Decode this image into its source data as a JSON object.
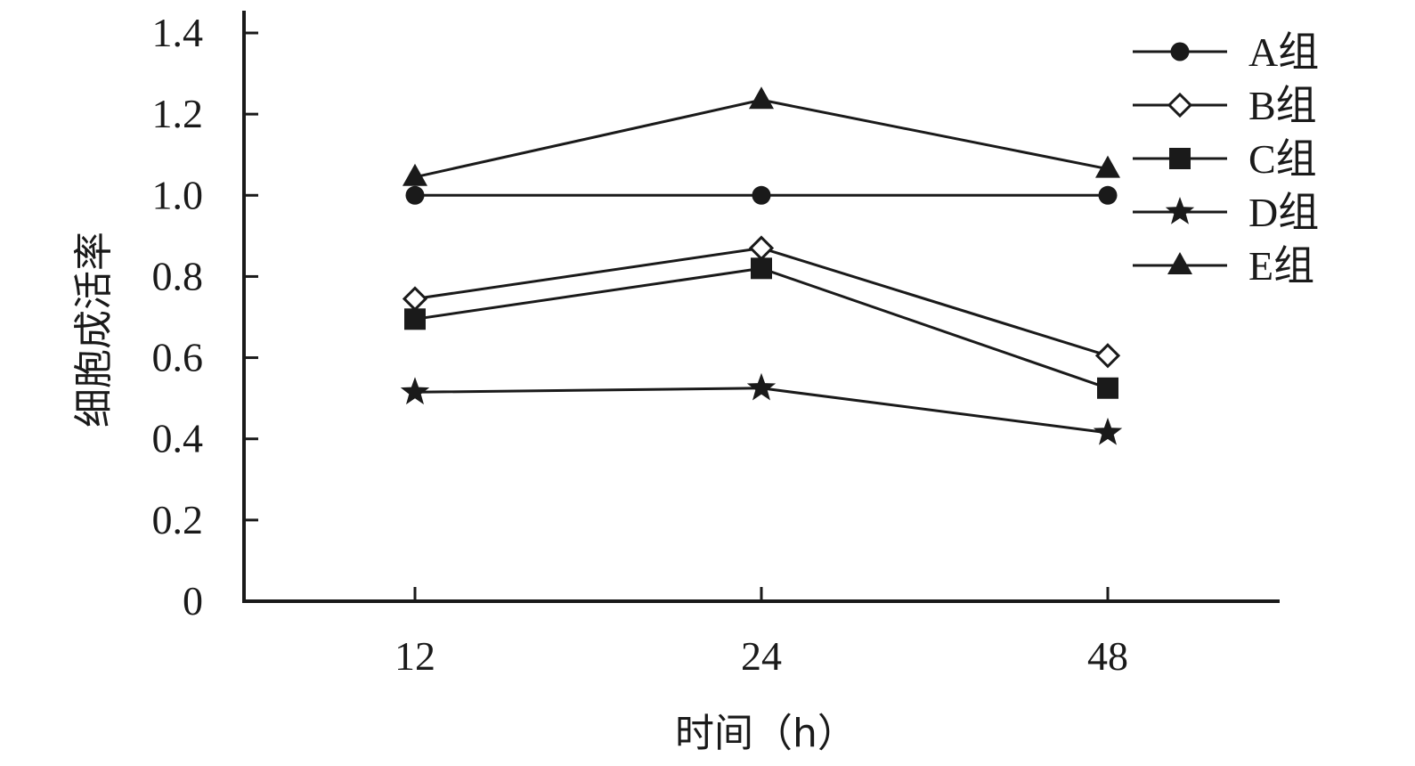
{
  "chart_data": {
    "type": "line",
    "x": [
      "12",
      "24",
      "48"
    ],
    "xlabel": "时间（h）",
    "ylabel": "细胞成活率",
    "ylim": [
      0,
      1.4
    ],
    "yticks": [
      "0",
      "0.2",
      "0.4",
      "0.6",
      "0.8",
      "1.0",
      "1.2",
      "1.4"
    ],
    "grid": false,
    "legend_position": "top-right",
    "series": [
      {
        "name": "A组",
        "marker": "circle",
        "values": [
          1.0,
          1.0,
          1.0
        ]
      },
      {
        "name": "B组",
        "marker": "diamond-open",
        "values": [
          0.745,
          0.87,
          0.605
        ]
      },
      {
        "name": "C组",
        "marker": "square",
        "values": [
          0.695,
          0.82,
          0.525
        ]
      },
      {
        "name": "D组",
        "marker": "star",
        "values": [
          0.515,
          0.525,
          0.415
        ]
      },
      {
        "name": "E组",
        "marker": "triangle",
        "values": [
          1.045,
          1.235,
          1.065
        ]
      }
    ],
    "colors": {
      "line": "#1a1a1a",
      "background": "#ffffff"
    }
  }
}
